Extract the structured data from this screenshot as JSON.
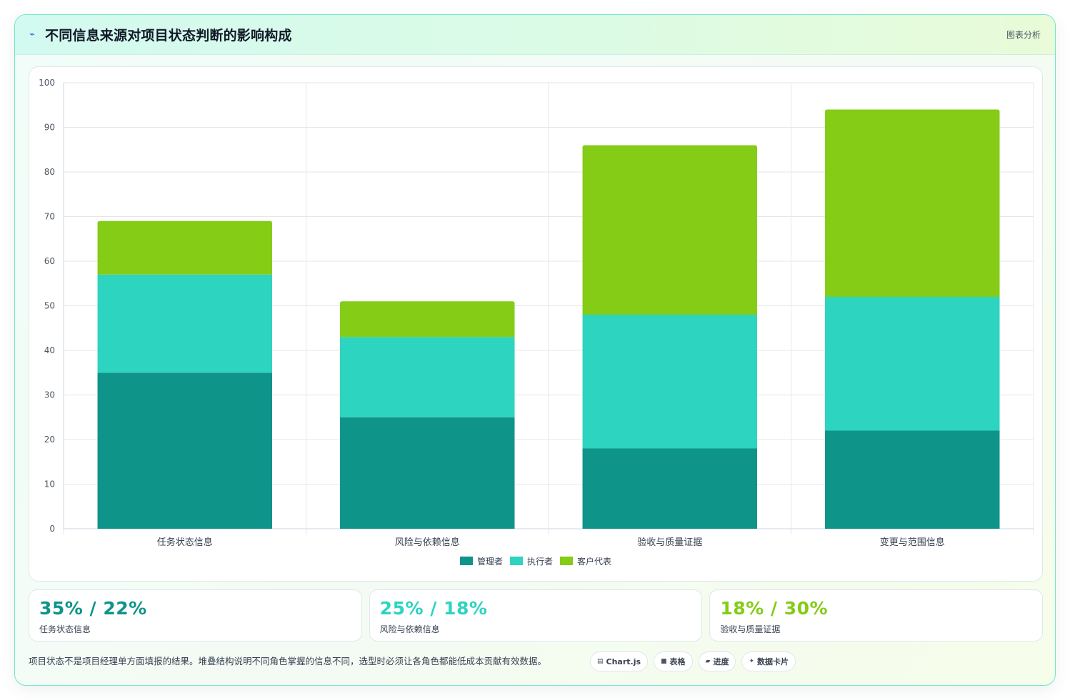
{
  "header": {
    "title": "不同信息来源对项目状态判断的影响构成",
    "tag": "图表分析",
    "icon": "lightning-icon"
  },
  "chart_data": {
    "type": "bar",
    "stacked": true,
    "categories": [
      "任务状态信息",
      "风险与依赖信息",
      "验收与质量证据",
      "变更与范围信息"
    ],
    "series": [
      {
        "name": "管理者",
        "values": [
          35,
          25,
          18,
          22
        ],
        "color": "#0e9488"
      },
      {
        "name": "执行者",
        "values": [
          22,
          18,
          30,
          30
        ],
        "color": "#2dd4bf"
      },
      {
        "name": "客户代表",
        "values": [
          12,
          8,
          38,
          42
        ],
        "color": "#84cc16"
      }
    ],
    "ylim": [
      0,
      100
    ],
    "yticks": [
      0,
      10,
      20,
      30,
      40,
      50,
      60,
      70,
      80,
      90,
      100
    ],
    "grid": true,
    "legend_position": "bottom"
  },
  "stats": [
    {
      "value": "35% / 22%",
      "label": "任务状态信息",
      "color": "#0e9488"
    },
    {
      "value": "25% / 18%",
      "label": "风险与依赖信息",
      "color": "#2dd4bf"
    },
    {
      "value": "18% / 30%",
      "label": "验收与质量证据",
      "color": "#84cc16"
    }
  ],
  "footer": {
    "note": "项目状态不是项目经理单方面填报的结果。堆叠结构说明不同角色掌握的信息不同，选型时必须让各角色都能低成本贡献有效数据。",
    "chips": [
      {
        "icon": "chart-icon",
        "glyph": "▤",
        "label": "Chart.js"
      },
      {
        "icon": "table-icon",
        "glyph": "■",
        "label": "表格"
      },
      {
        "icon": "progress-icon",
        "glyph": "▰",
        "label": "进度"
      },
      {
        "icon": "sparkle-icon",
        "glyph": "✦",
        "label": "数据卡片"
      }
    ]
  }
}
